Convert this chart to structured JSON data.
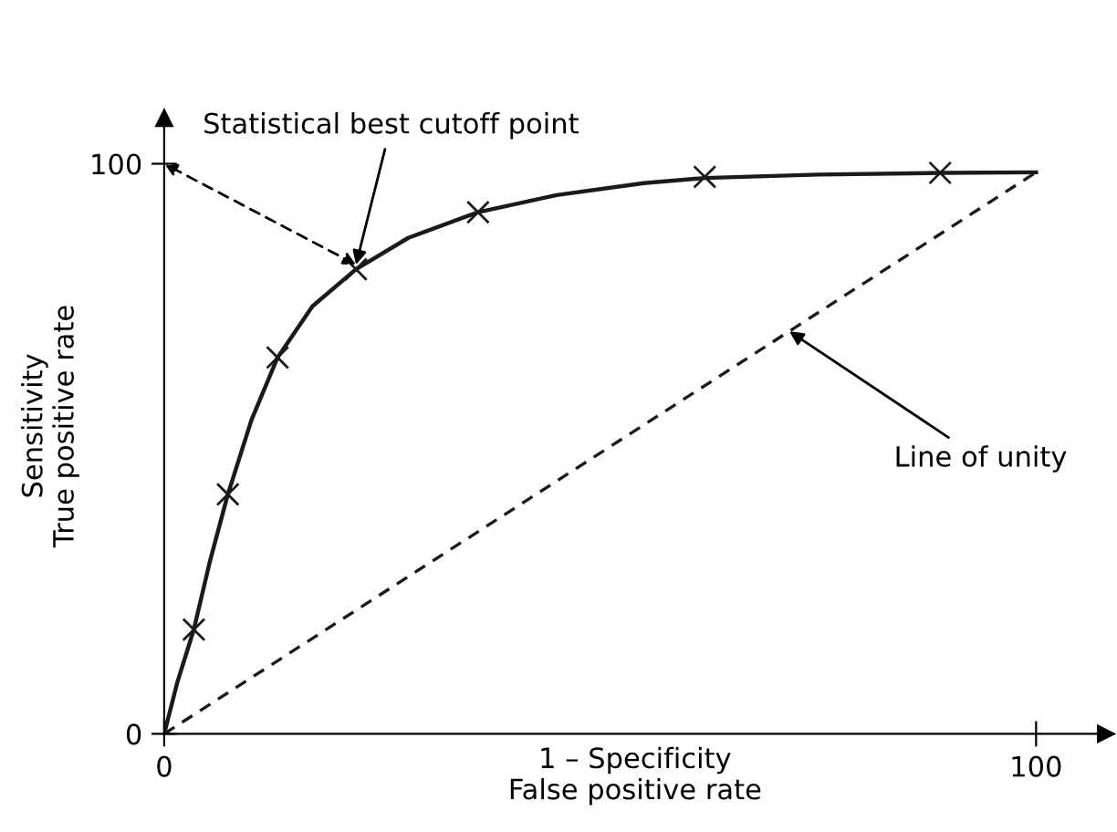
{
  "chart_data": {
    "type": "line",
    "xlabel": "1 – Specificity\nFalse positive rate",
    "ylabel": "Sensitivity\nTrue positive rate",
    "xlim": [
      0,
      108
    ],
    "ylim": [
      0,
      108
    ],
    "xticks": [
      0,
      100
    ],
    "yticks": [
      0,
      100
    ],
    "grid": false,
    "series": [
      {
        "color": "#1a1a1a",
        "line_style": "solid",
        "marker": "none",
        "x": [
          0,
          1.5,
          3.4,
          5.2,
          7.3,
          10,
          13,
          17,
          22,
          28,
          36,
          45,
          55,
          62,
          75,
          89,
          100
        ],
        "values": [
          0,
          9,
          18.3,
          30,
          42,
          55,
          66,
          75,
          81.5,
          87,
          91.5,
          94.5,
          96.6,
          97.5,
          98.1,
          98.4,
          98.5
        ]
      },
      {
        "type": "scatter",
        "color": "#1a1a1a",
        "marker": "cross",
        "x": [
          3.4,
          7.3,
          13,
          22,
          36,
          62,
          89
        ],
        "values": [
          18.3,
          42,
          66,
          81.5,
          91.5,
          97.7,
          98.4
        ]
      },
      {
        "color": "#1a1a1a",
        "line_style": "dashed",
        "marker": "none",
        "x": [
          0,
          100
        ],
        "values": [
          0,
          98.5
        ]
      }
    ],
    "annotations": [
      {
        "text": "Statistical best cutoff point",
        "x": 22,
        "y": 82.3
      },
      {
        "text": "Line of unity",
        "x": 71.7,
        "y": 70.6
      }
    ]
  }
}
